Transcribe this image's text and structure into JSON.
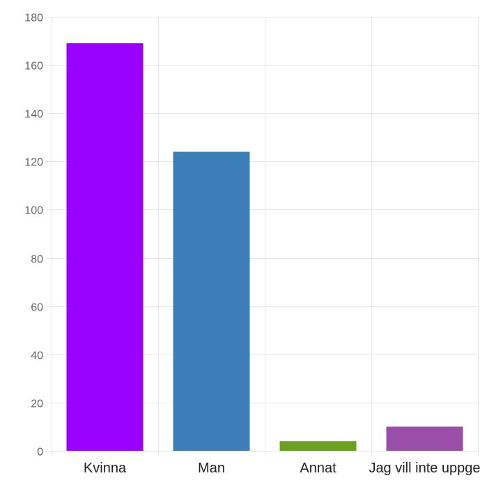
{
  "chart_data": {
    "type": "bar",
    "categories": [
      "Kvinna",
      "Man",
      "Annat",
      "Jag vill inte uppge"
    ],
    "values": [
      169,
      124,
      4,
      10
    ],
    "colors": [
      "#9900ff",
      "#3b7eb8",
      "#6aa121",
      "#994fa8"
    ],
    "ylim": [
      0,
      180
    ],
    "yticks": [
      0,
      20,
      40,
      60,
      80,
      100,
      120,
      140,
      160,
      180
    ],
    "title": "",
    "xlabel": "",
    "ylabel": "",
    "grid": true,
    "legend": "none"
  }
}
